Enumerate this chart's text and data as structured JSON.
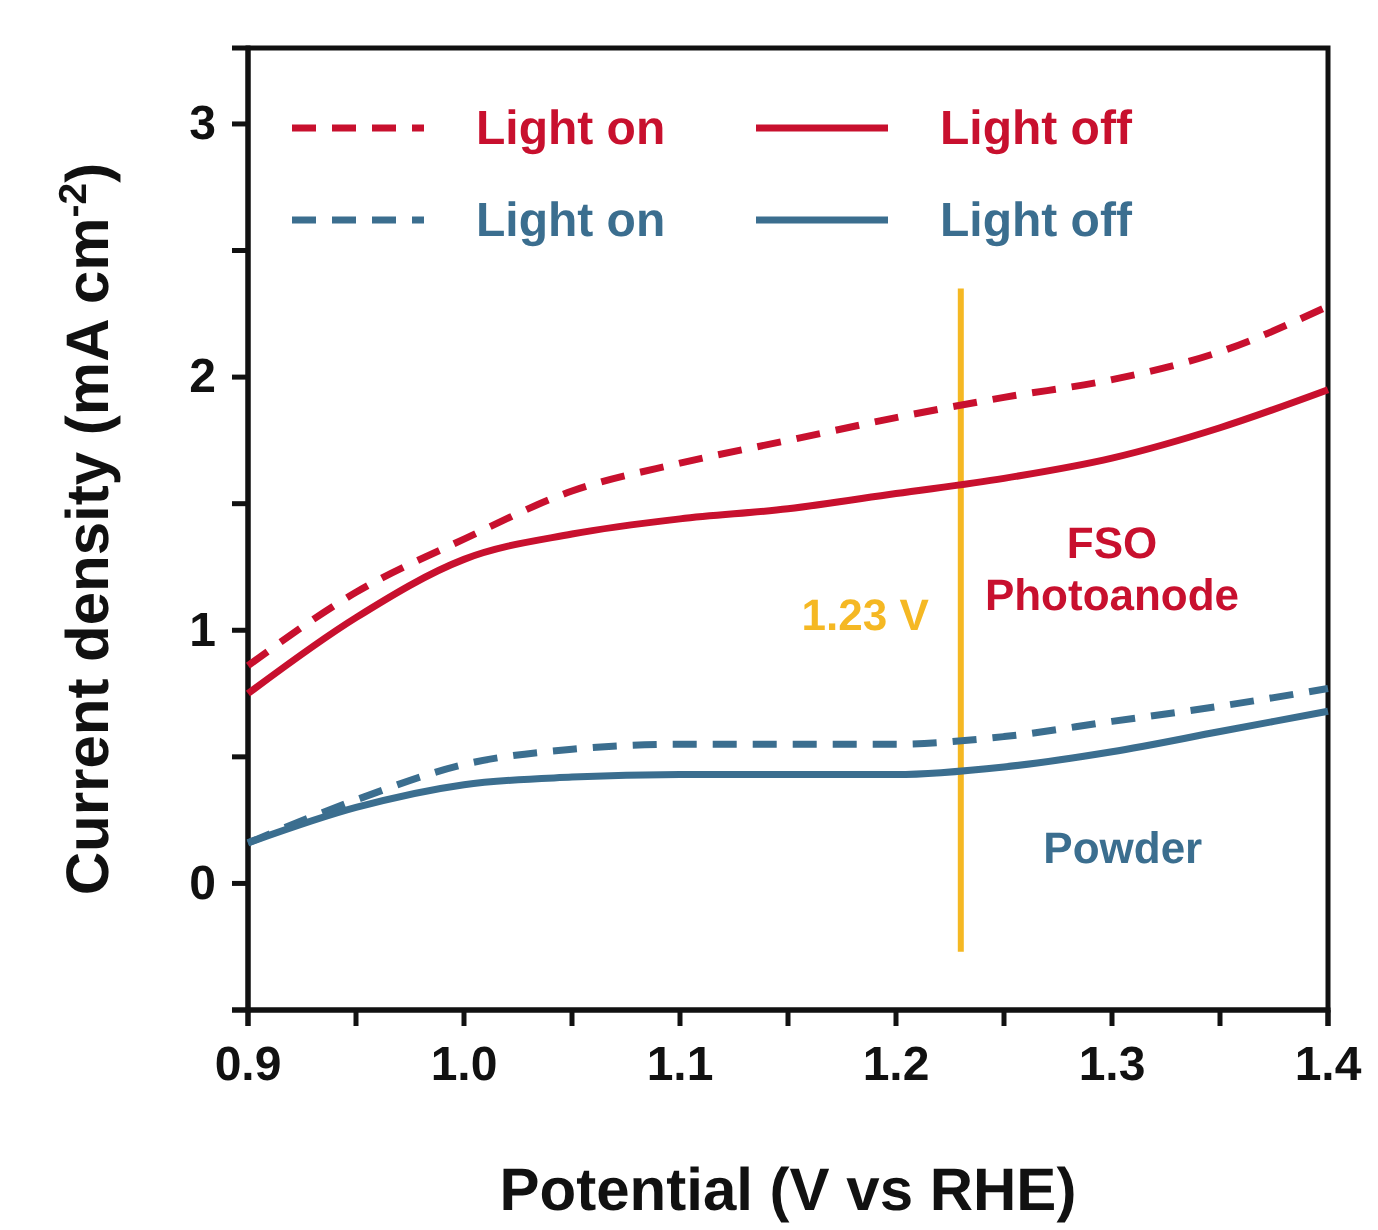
{
  "chart_data": {
    "type": "line",
    "xlabel": "Potential (V vs RHE)",
    "ylabel": "Current density (mA cm$^{-2}$)",
    "x": [
      0.9,
      0.95,
      1.0,
      1.05,
      1.1,
      1.15,
      1.2,
      1.25,
      1.3,
      1.35,
      1.4
    ],
    "series": [
      {
        "name": "Light on",
        "color": "#c8102e",
        "line_style": "dashed",
        "values": [
          0.86,
          1.15,
          1.36,
          1.55,
          1.66,
          1.75,
          1.84,
          1.92,
          1.99,
          2.1,
          2.28
        ]
      },
      {
        "name": "Light off",
        "color": "#c8102e",
        "line_style": "solid",
        "values": [
          0.75,
          1.05,
          1.28,
          1.38,
          1.44,
          1.48,
          1.54,
          1.6,
          1.68,
          1.8,
          1.95
        ]
      },
      {
        "name": "Light on",
        "color": "#3b6e8f",
        "line_style": "dashed",
        "values": [
          0.16,
          0.33,
          0.47,
          0.53,
          0.55,
          0.55,
          0.55,
          0.58,
          0.64,
          0.7,
          0.77
        ]
      },
      {
        "name": "Light off",
        "color": "#3b6e8f",
        "line_style": "solid",
        "values": [
          0.16,
          0.3,
          0.39,
          0.42,
          0.43,
          0.43,
          0.43,
          0.46,
          0.52,
          0.6,
          0.68
        ]
      }
    ],
    "xlim": [
      0.9,
      1.4
    ],
    "xticks": [
      0.9,
      {
        "value": 0.95,
        "label": null
      },
      {
        "value": 1.0,
        "label": "1.0"
      },
      {
        "value": 1.05,
        "label": null
      },
      1.1,
      {
        "value": 1.15,
        "label": null
      },
      1.2,
      {
        "value": 1.25,
        "label": null
      },
      1.3,
      {
        "value": 1.35,
        "label": null
      },
      1.4
    ],
    "ylim": [
      -0.5,
      3.3
    ],
    "yticks": [
      {
        "value": -0.5,
        "label": null
      },
      0,
      {
        "value": 0.5,
        "label": null
      },
      1,
      {
        "value": 1.5,
        "label": null
      },
      2,
      {
        "value": 2.5,
        "label": null
      },
      3
    ],
    "ref_lines": [
      {
        "axis": "x",
        "value": 1.23,
        "label": "1.23 V",
        "color": "#f5b823"
      }
    ],
    "annotations": [
      "FSO\nPhotoanode",
      "Powder"
    ],
    "legend": "top",
    "grid": false,
    "marker": "none"
  }
}
